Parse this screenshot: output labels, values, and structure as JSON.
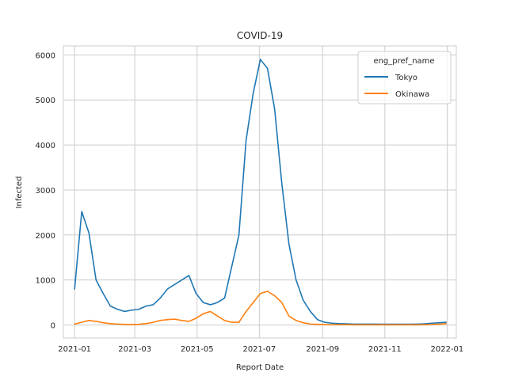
{
  "chart_data": {
    "type": "line",
    "title": "COVID-19",
    "xlabel": "Report Date",
    "ylabel": "Infected",
    "x_ticks": [
      "2021-01",
      "2021-03",
      "2021-05",
      "2021-07",
      "2021-09",
      "2021-11",
      "2022-01"
    ],
    "y_ticks": [
      0,
      1000,
      2000,
      3000,
      4000,
      5000,
      6000
    ],
    "xlim": [
      "2020-12-21",
      "2022-01-10"
    ],
    "ylim": [
      -290,
      6200
    ],
    "grid": true,
    "legend": {
      "title": "eng_pref_name",
      "placement": "top-right"
    },
    "x_sampling": "every 7 days from 2021-01-01 (series values listed in order)",
    "x_start": "2021-01-01",
    "x_step_days": 7,
    "series": [
      {
        "name": "Tokyo",
        "color": "#1f77b4",
        "values": [
          800,
          2520,
          2050,
          1000,
          700,
          420,
          350,
          300,
          330,
          350,
          420,
          450,
          600,
          800,
          900,
          1000,
          1100,
          700,
          500,
          450,
          500,
          600,
          1300,
          2000,
          4100,
          5150,
          5900,
          5700,
          4800,
          3150,
          1800,
          1000,
          550,
          300,
          120,
          60,
          40,
          30,
          25,
          20,
          20,
          20,
          20,
          18,
          18,
          18,
          18,
          18,
          20,
          25,
          40,
          50,
          60
        ]
      },
      {
        "name": "Okinawa",
        "color": "#ff7f0e",
        "values": [
          20,
          60,
          100,
          80,
          50,
          30,
          20,
          15,
          10,
          15,
          30,
          60,
          100,
          120,
          130,
          100,
          80,
          150,
          250,
          300,
          200,
          100,
          60,
          60,
          300,
          500,
          700,
          750,
          650,
          500,
          200,
          100,
          50,
          20,
          15,
          10,
          5,
          5,
          5,
          3,
          3,
          3,
          3,
          3,
          3,
          3,
          3,
          3,
          3,
          5,
          10,
          20,
          30
        ]
      }
    ]
  }
}
